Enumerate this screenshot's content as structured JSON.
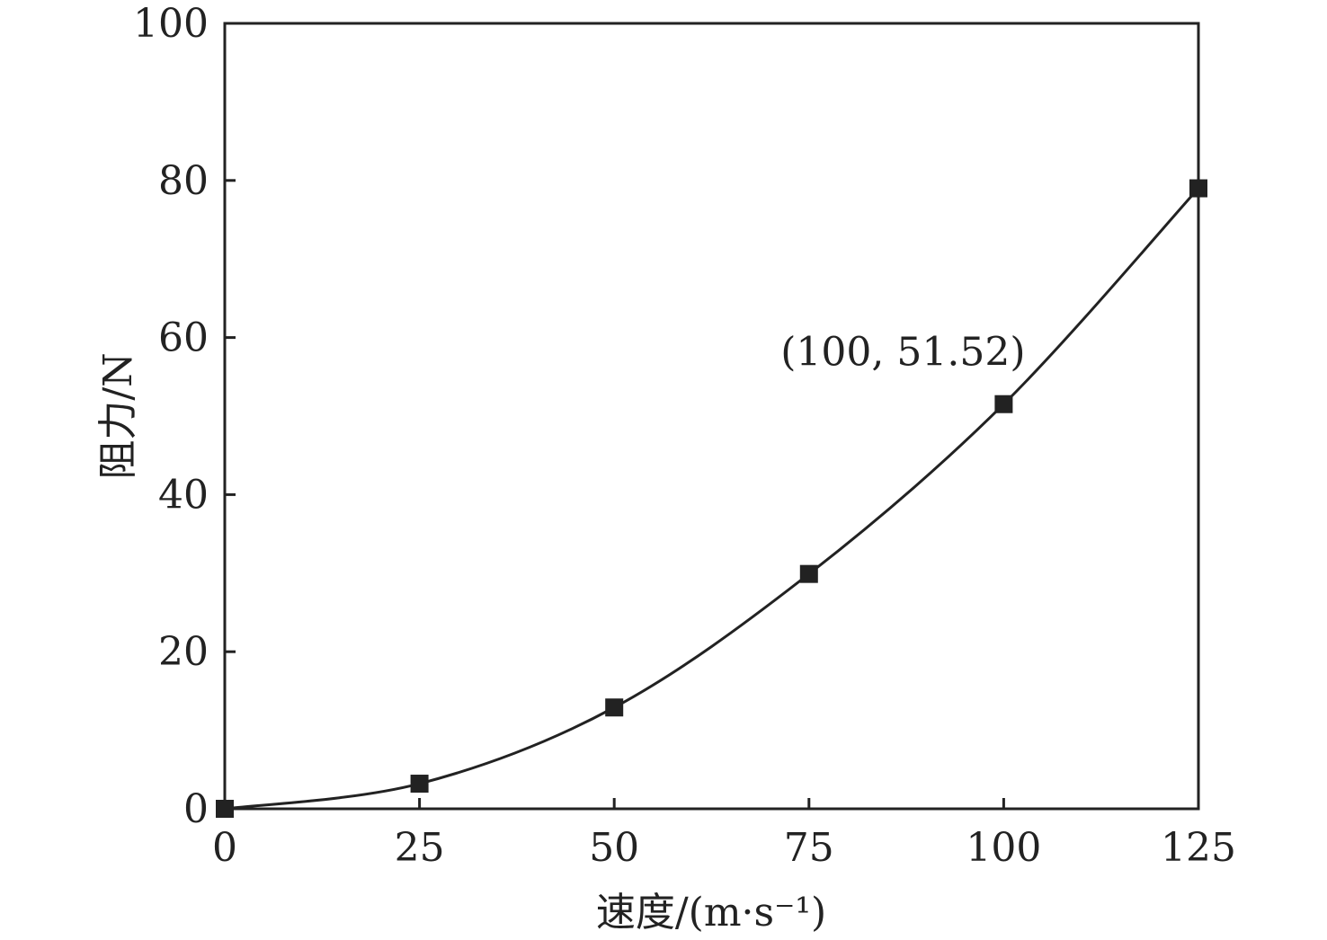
{
  "chart_data": {
    "type": "line",
    "xlabel": "速度/(m·s⁻¹)",
    "ylabel": "阻力/N",
    "xlim": [
      0,
      125
    ],
    "ylim": [
      0,
      100
    ],
    "xticks": [
      0,
      25,
      50,
      75,
      100,
      125
    ],
    "yticks": [
      0,
      20,
      40,
      60,
      80,
      100
    ],
    "grid": false,
    "series": [
      {
        "x": [
          0,
          25,
          50,
          75,
          100,
          125
        ],
        "y": [
          0,
          3.2,
          12.9,
          29.9,
          51.52,
          79.0
        ],
        "marker": "square",
        "color": "#222222"
      }
    ],
    "annotations": [
      {
        "text": "(100, 51.52)",
        "x": 100,
        "y": 51.52
      }
    ]
  }
}
